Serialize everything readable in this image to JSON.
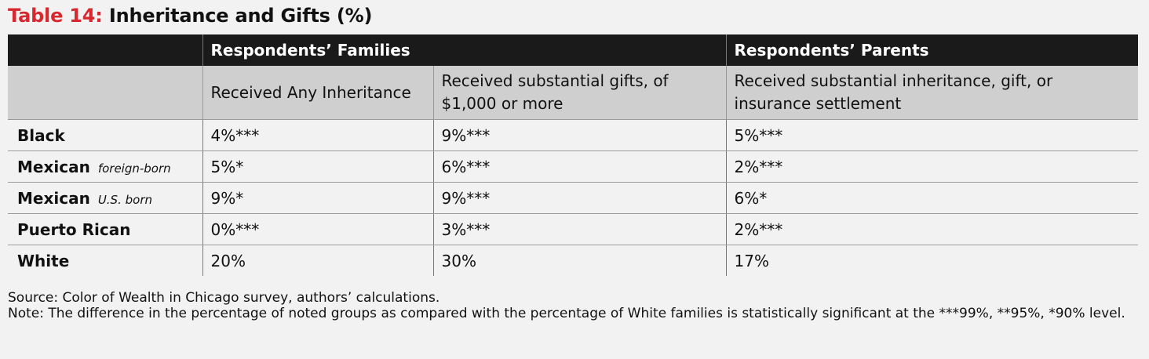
{
  "title": {
    "number": "Table 14:",
    "text": "Inheritance and Gifts (%)"
  },
  "band_headers": [
    "",
    "Respondents’ Families",
    "Respondents’ Parents"
  ],
  "sub_headers": [
    "",
    "Received Any Inheritance",
    "Received substantial gifts, of $1,000 or more",
    "Received substantial inheritance, gift, or insurance settlement"
  ],
  "rows": [
    {
      "group": "Black",
      "qualifier": "",
      "values": [
        "4%***",
        "9%***",
        "5%***"
      ]
    },
    {
      "group": "Mexican",
      "qualifier": "foreign-born",
      "values": [
        "5%*",
        "6%***",
        "2%***"
      ]
    },
    {
      "group": "Mexican",
      "qualifier": "U.S. born",
      "values": [
        "9%*",
        "9%***",
        "6%*"
      ]
    },
    {
      "group": "Puerto Rican",
      "qualifier": "",
      "values": [
        "0%***",
        "3%***",
        "2%***"
      ]
    },
    {
      "group": "White",
      "qualifier": "",
      "values": [
        "20%",
        "30%",
        "17%"
      ]
    }
  ],
  "footer": {
    "source": "Source: Color of Wealth in Chicago survey, authors’ calculations.",
    "note": "Note: The difference in the percentage of noted groups as compared with the percentage of White families is statistically significant at the ***99%, **95%, *90% level."
  },
  "colors": {
    "title_accent": "#d7282f",
    "band_bg": "#1a1a1a",
    "subheader_bg": "#cfcfcf",
    "page_bg": "#f2f2f2"
  }
}
